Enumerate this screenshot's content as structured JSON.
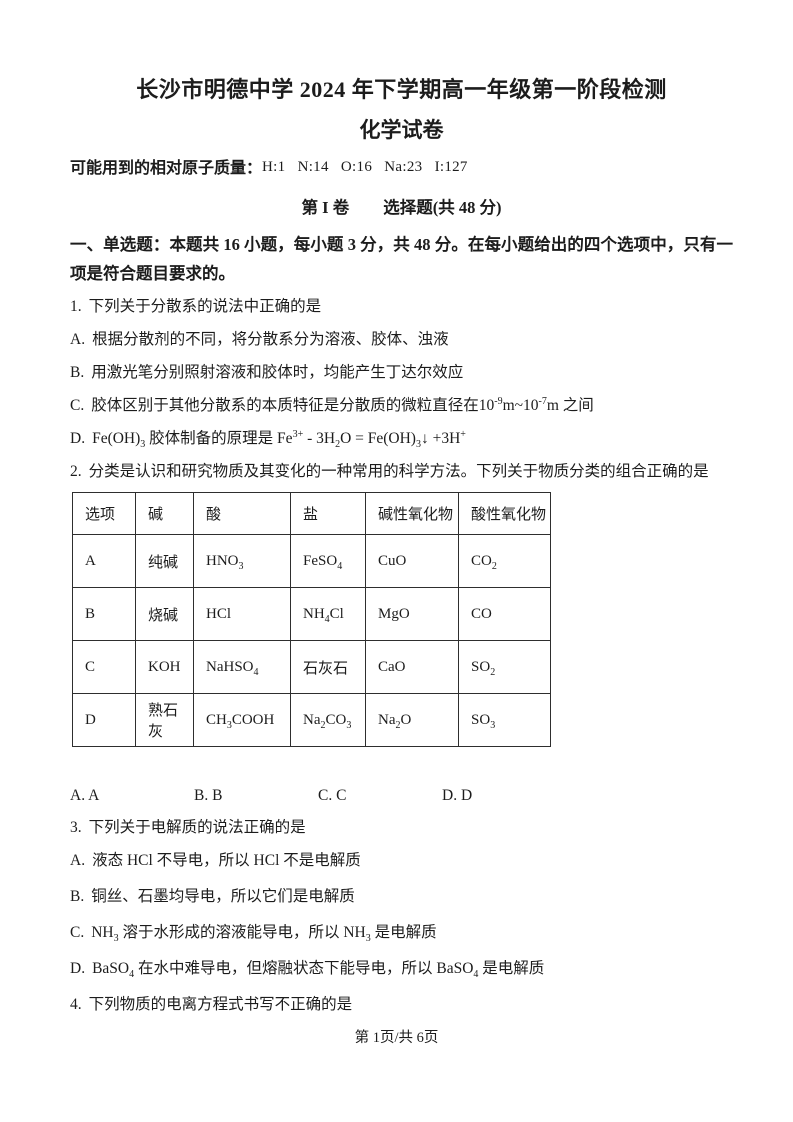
{
  "page": {
    "title": "长沙市明德中学 2024 年下学期高一年级第一阶段检测",
    "subtitle": "化学试卷",
    "atomic_mass_label": "可能用到的相对原子质量：",
    "atomic_masses": "H:1   N:14   O:16   Na:23   I:127",
    "volume_label": "第 I 卷",
    "section_title": "选择题(共 48 分)",
    "part_intro": "一、单选题：本题共 16 小题，每小题 3 分，共 48 分。在每小题给出的四个选项中，只有一项是符合题目要求的。",
    "footer": "第 1页/共 6页"
  },
  "questions": {
    "q1": {
      "number": "1.",
      "stem": "下列关于分散系的说法中正确的是",
      "options": [
        {
          "label": "A.",
          "text": "根据分散剂的不同，将分散系分为溶液、胶体、浊液"
        },
        {
          "label": "B.",
          "text": "用激光笔分别照射溶液和胶体时，均能产生丁达尔效应"
        },
        {
          "label": "C.",
          "text": "胶体区别于其他分散系的本质特征是分散质的微粒直径在10^{-9}m~10^{-7}m 之间"
        },
        {
          "label": "D.",
          "text": "Fe(OH)_{3} 胶体制备的原理是 Fe^{3+} - 3H_{2}O = Fe(OH)_{3}↓ +3H^{+}"
        }
      ]
    },
    "q2": {
      "number": "2.",
      "stem": "分类是认识和研究物质及其变化的一种常用的科学方法。下列关于物质分类的组合正确的是",
      "table": {
        "headers": [
          "选项",
          "碱",
          "酸",
          "盐",
          "碱性氧化物",
          "酸性氧化物"
        ],
        "rows": [
          [
            "A",
            "纯碱",
            "HNO_{3}",
            "FeSO_{4}",
            "CuO",
            "CO_{2}"
          ],
          [
            "B",
            "烧碱",
            "HCl",
            "NH_{4}Cl",
            "MgO",
            "CO"
          ],
          [
            "C",
            "KOH",
            "NaHSO_{4}",
            "石灰石",
            "CaO",
            "SO_{2}"
          ],
          [
            "D",
            "熟石灰",
            "CH_{3}COOH",
            "Na_{2}CO_{3}",
            "Na_{2}O",
            "SO_{3}"
          ]
        ]
      },
      "answer_options": [
        "A. A",
        "B. B",
        "C. C",
        "D. D"
      ]
    },
    "q3": {
      "number": "3.",
      "stem": "下列关于电解质的说法正确的是",
      "options": [
        {
          "label": "A.",
          "text": "液态 HCl 不导电，所以 HCl 不是电解质"
        },
        {
          "label": "B.",
          "text": "铜丝、石墨均导电，所以它们是电解质"
        },
        {
          "label": "C.",
          "text": "NH_{3} 溶于水形成的溶液能导电，所以 NH_{3} 是电解质"
        },
        {
          "label": "D.",
          "text": "BaSO_{4} 在水中难导电，但熔融状态下能导电，所以 BaSO_{4} 是电解质"
        }
      ]
    },
    "q4": {
      "number": "4.",
      "stem": "下列物质的电离方程式书写不正确的是"
    }
  }
}
